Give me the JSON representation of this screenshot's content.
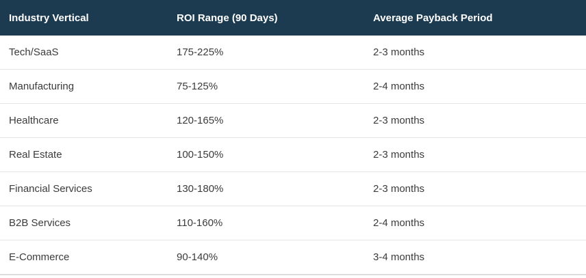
{
  "colors": {
    "header_bg": "#1c3a50",
    "header_text": "#ffffff",
    "body_text": "#3b3b3b",
    "row_bg": "#ffffff",
    "row_divider": "#e4e4e4",
    "bottom_border": "#dcdcdc"
  },
  "table": {
    "columns": [
      "Industry Vertical",
      "ROI Range (90 Days)",
      "Average Payback Period"
    ],
    "rows": [
      [
        "Tech/SaaS",
        "175-225%",
        "2-3 months"
      ],
      [
        "Manufacturing",
        "75-125%",
        "2-4 months"
      ],
      [
        "Healthcare",
        "120-165%",
        "2-3 months"
      ],
      [
        "Real Estate",
        "100-150%",
        "2-3 months"
      ],
      [
        "Financial Services",
        "130-180%",
        "2-3 months"
      ],
      [
        "B2B Services",
        "110-160%",
        "2-4 months"
      ],
      [
        "E-Commerce",
        "90-140%",
        "3-4 months"
      ]
    ]
  },
  "chart_data": {
    "type": "table",
    "title": "",
    "columns": [
      "Industry Vertical",
      "ROI Range (90 Days)",
      "Average Payback Period"
    ],
    "rows": [
      {
        "industry": "Tech/SaaS",
        "roi_range_90_days": "175-225%",
        "avg_payback_period": "2-3 months"
      },
      {
        "industry": "Manufacturing",
        "roi_range_90_days": "75-125%",
        "avg_payback_period": "2-4 months"
      },
      {
        "industry": "Healthcare",
        "roi_range_90_days": "120-165%",
        "avg_payback_period": "2-3 months"
      },
      {
        "industry": "Real Estate",
        "roi_range_90_days": "100-150%",
        "avg_payback_period": "2-3 months"
      },
      {
        "industry": "Financial Services",
        "roi_range_90_days": "130-180%",
        "avg_payback_period": "2-3 months"
      },
      {
        "industry": "B2B Services",
        "roi_range_90_days": "110-160%",
        "avg_payback_period": "2-4 months"
      },
      {
        "industry": "E-Commerce",
        "roi_range_90_days": "90-140%",
        "avg_payback_period": "3-4 months"
      }
    ]
  }
}
